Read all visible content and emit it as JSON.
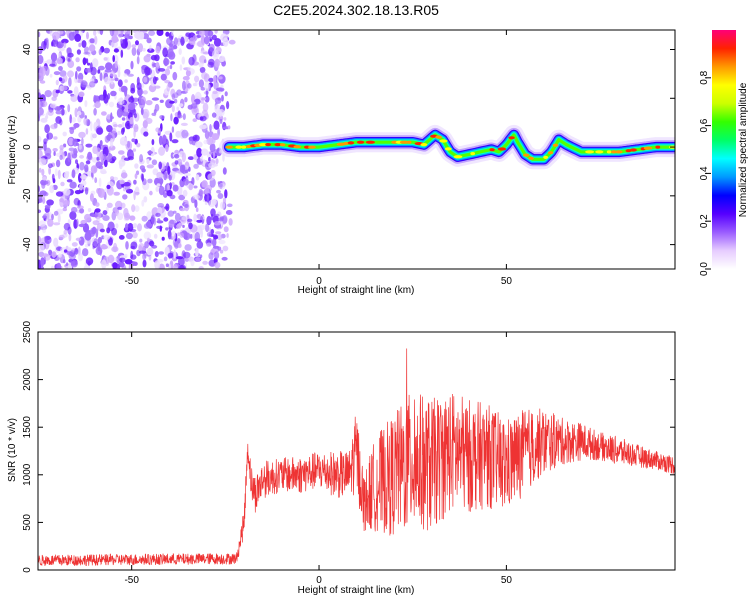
{
  "title": "C2E5.2024.302.18.13.R05",
  "chart_data": [
    {
      "type": "heatmap",
      "xlabel": "Height of straight line (km)",
      "ylabel": "Frequency (Hz)",
      "xlim": [
        -75,
        95
      ],
      "ylim": [
        -50,
        48
      ],
      "x_ticks": [
        -50,
        0,
        50
      ],
      "y_ticks": [
        -40,
        -20,
        0,
        20,
        40
      ],
      "colorbar": {
        "label": "Normalized spectral amplitude",
        "range": [
          0.0,
          1.0
        ],
        "ticks": [
          "0.0",
          "0.2",
          "0.4",
          "0.6",
          "0.8"
        ],
        "colors": [
          "#ffffff",
          "#e6ccff",
          "#9a5cff",
          "#5500ff",
          "#0000ff",
          "#0099ff",
          "#00ffff",
          "#00ff66",
          "#33ff00",
          "#ccff00",
          "#ffff00",
          "#ff9900",
          "#ff2200",
          "#ff0077"
        ]
      },
      "noise_region_x": [
        -75,
        -23
      ],
      "ridge_start_x": -24,
      "ridge": {
        "x": [
          -24,
          -20,
          -15,
          -10,
          -5,
          0,
          5,
          10,
          15,
          20,
          25,
          28,
          31,
          33,
          35,
          37,
          40,
          43,
          46,
          48,
          50,
          52,
          53,
          55,
          57,
          60,
          62,
          64,
          66,
          70,
          75,
          80,
          85,
          90,
          95
        ],
        "y": [
          0,
          0,
          1,
          1,
          0,
          0,
          1,
          2,
          2,
          2,
          2,
          1,
          5,
          3,
          -2,
          -4,
          -3,
          -2,
          -1,
          -2,
          1,
          5,
          2,
          -3,
          -5,
          -5,
          -2,
          3,
          1,
          -2,
          -2,
          -2,
          -1,
          0,
          0
        ]
      }
    },
    {
      "type": "line",
      "xlabel": "Height of straight line (km)",
      "ylabel": "SNR (10 * v/v)",
      "xlim": [
        -75,
        95
      ],
      "ylim": [
        0,
        2500
      ],
      "x_ticks": [
        -50,
        0,
        50
      ],
      "y_ticks": [
        0,
        500,
        1000,
        1500,
        2000,
        2500
      ],
      "color": "#ee3333",
      "x": [
        -75,
        -22,
        -20,
        -19,
        -18,
        -17,
        -15,
        -10,
        -5,
        0,
        5,
        8,
        10,
        12,
        15,
        20,
        25,
        30,
        35,
        40,
        45,
        50,
        55,
        60,
        65,
        70,
        75,
        80,
        85,
        90,
        95
      ],
      "y": [
        100,
        120,
        500,
        1300,
        900,
        800,
        950,
        1000,
        1000,
        1050,
        1000,
        1000,
        1250,
        700,
        900,
        1000,
        1150,
        1100,
        1250,
        1200,
        1200,
        1100,
        1250,
        1350,
        1350,
        1350,
        1300,
        1250,
        1200,
        1150,
        1100
      ],
      "spread": [
        60,
        60,
        150,
        150,
        200,
        200,
        200,
        180,
        200,
        200,
        250,
        250,
        450,
        300,
        500,
        650,
        750,
        700,
        650,
        600,
        550,
        500,
        450,
        350,
        250,
        200,
        150,
        150,
        120,
        100,
        100
      ]
    }
  ]
}
